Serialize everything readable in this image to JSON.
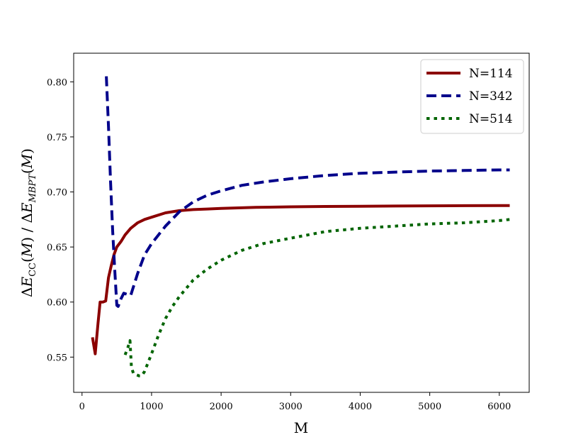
{
  "chart_data": {
    "type": "line",
    "title": "",
    "xlabel": "M",
    "ylabel": "ΔE_CC(M) / ΔE_MBPT(M)",
    "xlim": [
      -120,
      6430
    ],
    "ylim": [
      0.518,
      0.826
    ],
    "xticks": [
      0,
      1000,
      2000,
      3000,
      4000,
      5000,
      6000
    ],
    "xtick_labels": [
      "0",
      "1000",
      "2000",
      "3000",
      "4000",
      "5000",
      "6000"
    ],
    "yticks": [
      0.55,
      0.6,
      0.65,
      0.7,
      0.75,
      0.8
    ],
    "ytick_labels": [
      "0.55",
      "0.60",
      "0.65",
      "0.70",
      "0.75",
      "0.80"
    ],
    "grid": false,
    "legend_position": "top-right",
    "series": [
      {
        "name": "N=114",
        "color": "#8b0000",
        "style": "solid",
        "x": [
          150,
          190,
          230,
          260,
          300,
          340,
          380,
          420,
          460,
          500,
          560,
          620,
          700,
          800,
          900,
          1000,
          1200,
          1400,
          1600,
          1800,
          2000,
          2500,
          3000,
          3500,
          4000,
          4500,
          5000,
          5500,
          6000,
          6150
        ],
        "y": [
          0.568,
          0.553,
          0.581,
          0.6,
          0.6,
          0.601,
          0.622,
          0.633,
          0.643,
          0.65,
          0.655,
          0.661,
          0.667,
          0.672,
          0.675,
          0.677,
          0.681,
          0.683,
          0.684,
          0.6845,
          0.685,
          0.686,
          0.6865,
          0.6868,
          0.687,
          0.6872,
          0.6874,
          0.6875,
          0.6876,
          0.6876
        ]
      },
      {
        "name": "N=342",
        "color": "#00008b",
        "style": "dashed",
        "x": [
          350,
          380,
          410,
          440,
          470,
          500,
          520,
          560,
          600,
          650,
          700,
          750,
          800,
          900,
          1000,
          1200,
          1400,
          1600,
          1800,
          2000,
          2300,
          2600,
          3000,
          3500,
          4000,
          4500,
          5000,
          5500,
          6000,
          6150
        ],
        "y": [
          0.805,
          0.76,
          0.71,
          0.665,
          0.63,
          0.597,
          0.596,
          0.603,
          0.608,
          0.607,
          0.606,
          0.616,
          0.626,
          0.643,
          0.653,
          0.669,
          0.682,
          0.691,
          0.697,
          0.701,
          0.706,
          0.709,
          0.712,
          0.715,
          0.717,
          0.718,
          0.719,
          0.7195,
          0.72,
          0.72
        ]
      },
      {
        "name": "N=514",
        "color": "#006400",
        "style": "dotted",
        "x": [
          620,
          660,
          690,
          710,
          740,
          780,
          820,
          860,
          900,
          950,
          1000,
          1100,
          1200,
          1300,
          1400,
          1600,
          1800,
          2000,
          2300,
          2600,
          3000,
          3500,
          4000,
          4500,
          5000,
          5500,
          6000,
          6150
        ],
        "y": [
          0.552,
          0.559,
          0.565,
          0.541,
          0.535,
          0.534,
          0.533,
          0.533,
          0.537,
          0.545,
          0.553,
          0.57,
          0.585,
          0.596,
          0.605,
          0.62,
          0.63,
          0.638,
          0.647,
          0.653,
          0.658,
          0.664,
          0.667,
          0.669,
          0.671,
          0.672,
          0.674,
          0.675
        ]
      }
    ]
  }
}
